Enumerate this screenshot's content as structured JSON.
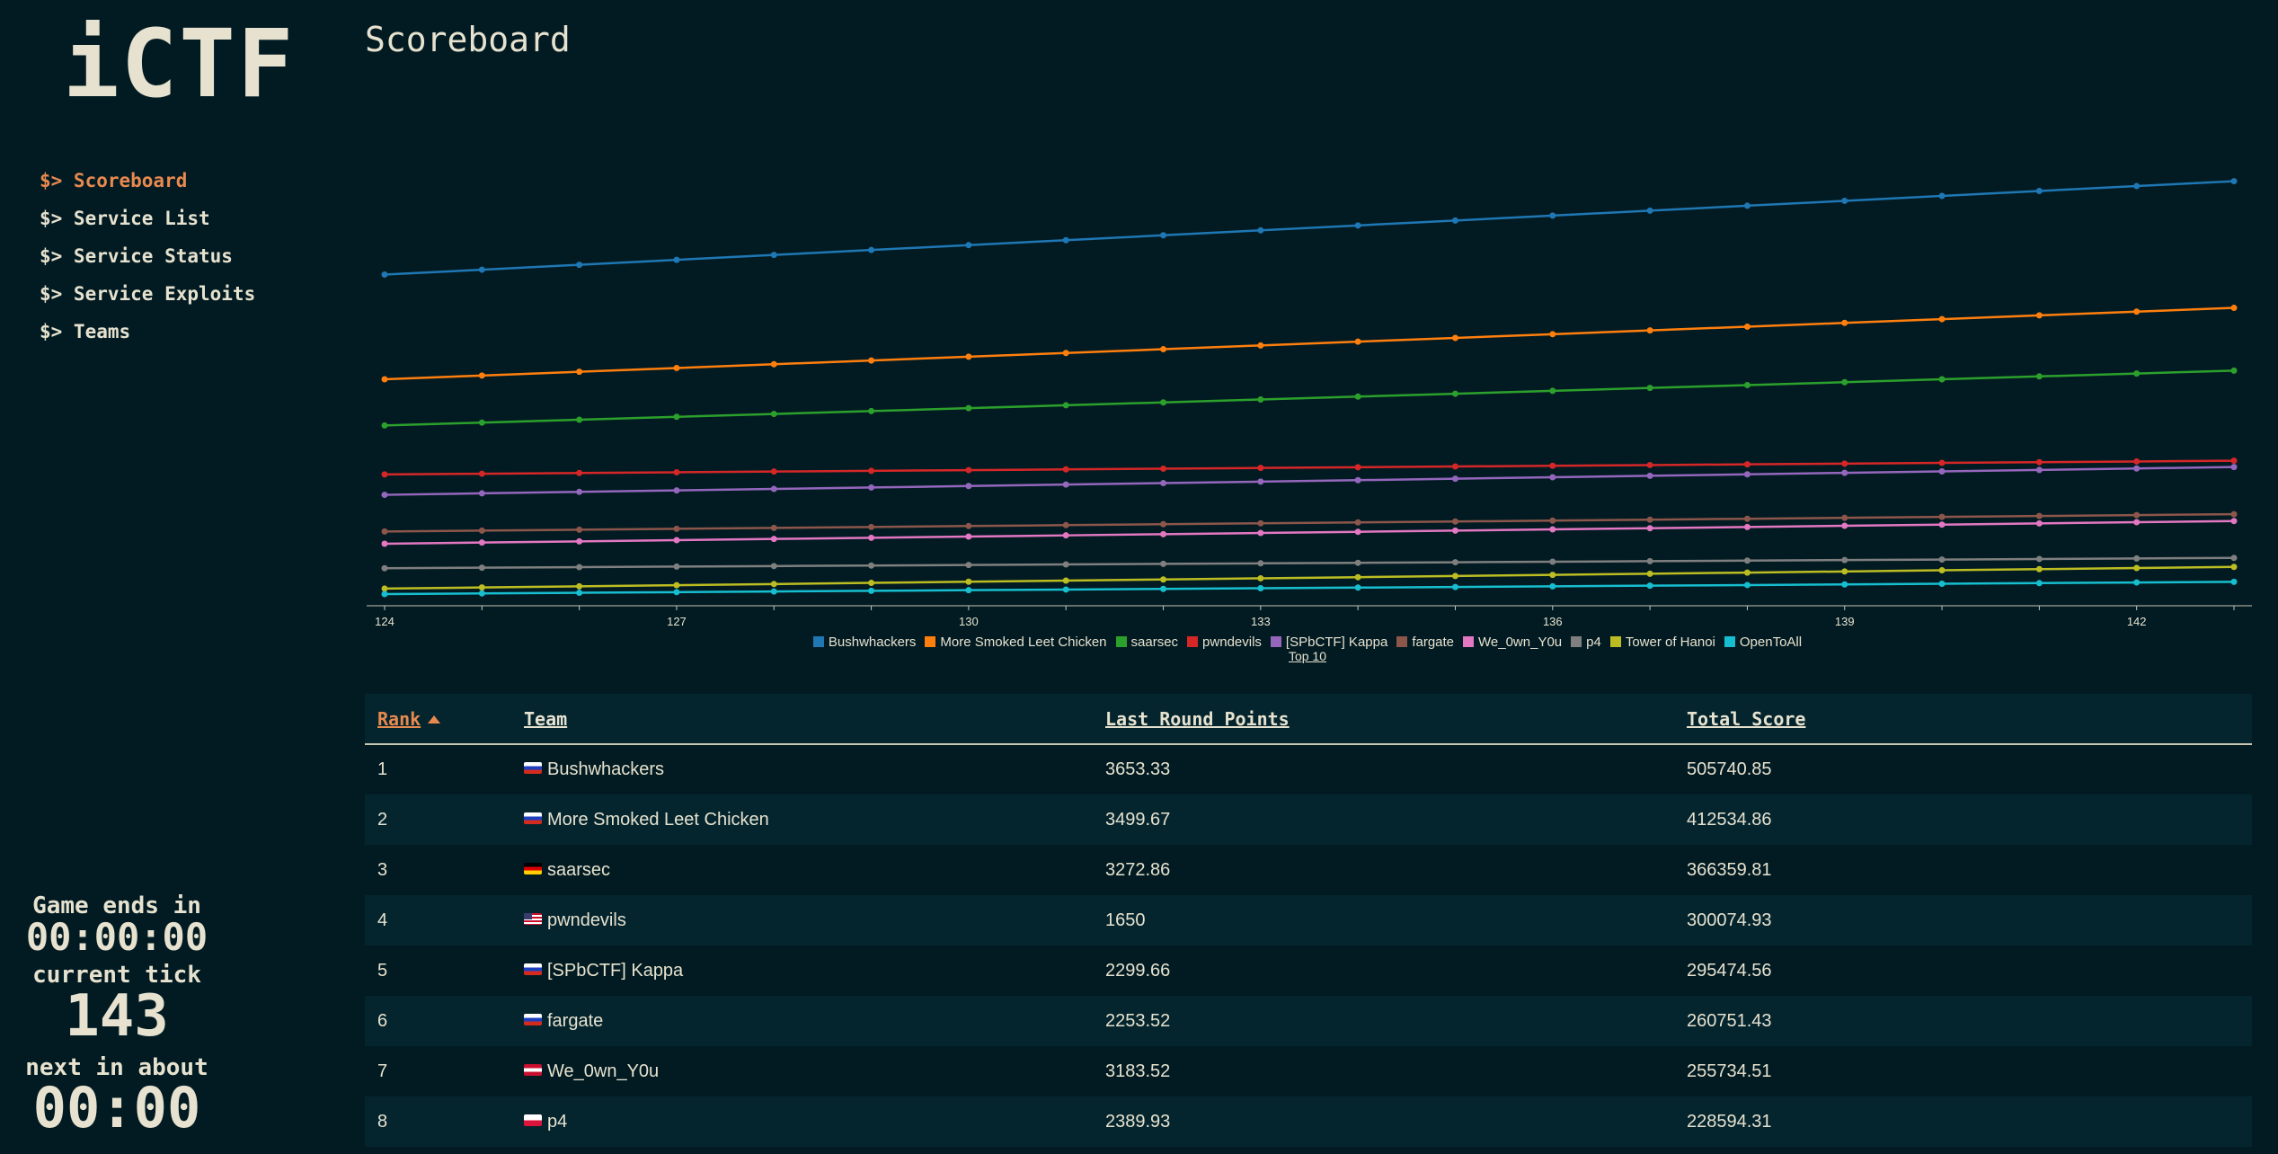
{
  "logo": "iCTF",
  "nav": [
    {
      "label": "$> Scoreboard",
      "active": true
    },
    {
      "label": "$> Service List",
      "active": false
    },
    {
      "label": "$> Service Status",
      "active": false
    },
    {
      "label": "$> Service Exploits",
      "active": false
    },
    {
      "label": "$> Teams",
      "active": false
    }
  ],
  "status": {
    "game_ends_label": "Game ends in",
    "game_ends_value": "00:00:00",
    "tick_label": "current tick",
    "tick_value": "143",
    "next_label": "next in about",
    "next_value": "00:00"
  },
  "page": {
    "title": "Scoreboard"
  },
  "chart_link": "Top 10",
  "chart_data": {
    "type": "line",
    "x": [
      124,
      125,
      126,
      127,
      128,
      129,
      130,
      131,
      132,
      133,
      134,
      135,
      136,
      137,
      138,
      139,
      140,
      141,
      142,
      143
    ],
    "x_ticks": [
      124,
      127,
      130,
      133,
      136,
      139,
      142
    ],
    "ylim": [
      200000,
      520000
    ],
    "grid": false,
    "legend": "bottom",
    "series": [
      {
        "name": "Bushwhackers",
        "color": "#1f77b4",
        "start": 437000,
        "end": 505740.85
      },
      {
        "name": "More Smoked Leet Chicken",
        "color": "#ff7f0e",
        "start": 360000,
        "end": 412534.86
      },
      {
        "name": "saarsec",
        "color": "#2ca02c",
        "start": 326000,
        "end": 366359.81
      },
      {
        "name": "pwndevils",
        "color": "#d62728",
        "start": 290000,
        "end": 300074.93
      },
      {
        "name": "[SPbCTF] Kappa",
        "color": "#9467bd",
        "start": 275000,
        "end": 295474.56
      },
      {
        "name": "fargate",
        "color": "#8c564b",
        "start": 248000,
        "end": 260751.43
      },
      {
        "name": "We_0wn_Y0u",
        "color": "#e377c2",
        "start": 239000,
        "end": 255734.51
      },
      {
        "name": "p4",
        "color": "#7f7f7f",
        "start": 221000,
        "end": 228594.31
      },
      {
        "name": "Tower of Hanoi",
        "color": "#bcbd22",
        "start": 206000,
        "end": 222000
      },
      {
        "name": "OpenToAll",
        "color": "#17becf",
        "start": 202000,
        "end": 211000
      }
    ]
  },
  "table": {
    "headers": [
      "Rank",
      "Team",
      "Last Round Points",
      "Total Score"
    ],
    "rows": [
      {
        "rank": "1",
        "flag": "ru",
        "team": "Bushwhackers",
        "last": "3653.33",
        "total": "505740.85"
      },
      {
        "rank": "2",
        "flag": "ru",
        "team": "More Smoked Leet Chicken",
        "last": "3499.67",
        "total": "412534.86"
      },
      {
        "rank": "3",
        "flag": "de",
        "team": "saarsec",
        "last": "3272.86",
        "total": "366359.81"
      },
      {
        "rank": "4",
        "flag": "us",
        "team": "pwndevils",
        "last": "1650",
        "total": "300074.93"
      },
      {
        "rank": "5",
        "flag": "ru",
        "team": "[SPbCTF] Kappa",
        "last": "2299.66",
        "total": "295474.56"
      },
      {
        "rank": "6",
        "flag": "ru",
        "team": "fargate",
        "last": "2253.52",
        "total": "260751.43"
      },
      {
        "rank": "7",
        "flag": "at",
        "team": "We_0wn_Y0u",
        "last": "3183.52",
        "total": "255734.51"
      },
      {
        "rank": "8",
        "flag": "pl",
        "team": "p4",
        "last": "2389.93",
        "total": "228594.31"
      }
    ]
  }
}
